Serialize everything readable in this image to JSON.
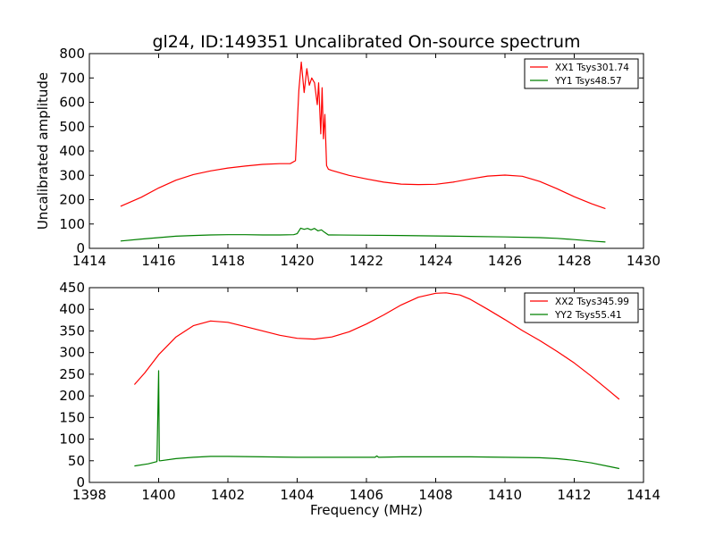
{
  "chart_data": [
    {
      "type": "line",
      "title": "gl24, ID:149351 Uncalibrated On-source spectrum",
      "xlabel": "",
      "ylabel": "Uncalibrated amplitude",
      "xlim": [
        1414,
        1430
      ],
      "ylim": [
        0,
        800
      ],
      "xticks": [
        1414,
        1416,
        1418,
        1420,
        1422,
        1424,
        1426,
        1428,
        1430
      ],
      "yticks": [
        0,
        100,
        200,
        300,
        400,
        500,
        600,
        700,
        800
      ],
      "legend_position": "top-right",
      "series": [
        {
          "name": "XX1 Tsys301.74",
          "color": "#ff0000",
          "x": [
            1414.9,
            1415.5,
            1416.0,
            1416.5,
            1417.0,
            1417.5,
            1418.0,
            1418.5,
            1419.0,
            1419.5,
            1419.8,
            1419.95,
            1420.05,
            1420.12,
            1420.2,
            1420.28,
            1420.35,
            1420.42,
            1420.5,
            1420.58,
            1420.62,
            1420.68,
            1420.72,
            1420.76,
            1420.8,
            1420.85,
            1420.9,
            1421.0,
            1421.5,
            1422.0,
            1422.5,
            1423.0,
            1423.5,
            1424.0,
            1424.5,
            1425.0,
            1425.5,
            1426.0,
            1426.5,
            1427.0,
            1427.5,
            1428.0,
            1428.5,
            1428.9
          ],
          "values": [
            173,
            210,
            248,
            280,
            303,
            318,
            330,
            338,
            345,
            348,
            348,
            360,
            650,
            765,
            640,
            738,
            670,
            700,
            680,
            590,
            680,
            470,
            660,
            450,
            550,
            340,
            325,
            320,
            300,
            285,
            272,
            264,
            262,
            263,
            272,
            285,
            297,
            301,
            296,
            275,
            245,
            212,
            183,
            163
          ]
        },
        {
          "name": "YY1 Tsys48.57",
          "color": "#008000",
          "x": [
            1414.9,
            1415.5,
            1416.0,
            1416.5,
            1417.0,
            1417.5,
            1418.0,
            1418.5,
            1419.0,
            1419.5,
            1419.9,
            1420.0,
            1420.1,
            1420.2,
            1420.3,
            1420.4,
            1420.5,
            1420.6,
            1420.7,
            1420.8,
            1420.9,
            1421.0,
            1422.0,
            1423.0,
            1424.0,
            1425.0,
            1426.0,
            1427.0,
            1427.5,
            1428.0,
            1428.5,
            1428.9
          ],
          "values": [
            30,
            38,
            44,
            50,
            53,
            55,
            56,
            56,
            55,
            55,
            56,
            60,
            83,
            78,
            82,
            76,
            82,
            72,
            76,
            65,
            55,
            55,
            54,
            53,
            51,
            49,
            47,
            44,
            41,
            36,
            30,
            26
          ]
        }
      ]
    },
    {
      "type": "line",
      "title": "",
      "xlabel": "Frequency (MHz)",
      "ylabel": "",
      "xlim": [
        1398,
        1414
      ],
      "ylim": [
        0,
        450
      ],
      "xticks": [
        1398,
        1400,
        1402,
        1404,
        1406,
        1408,
        1410,
        1412,
        1414
      ],
      "yticks": [
        0,
        50,
        100,
        150,
        200,
        250,
        300,
        350,
        400,
        450
      ],
      "legend_position": "top-right",
      "series": [
        {
          "name": "XX2 Tsys345.99",
          "color": "#ff0000",
          "x": [
            1399.3,
            1399.6,
            1400.0,
            1400.5,
            1401.0,
            1401.5,
            1402.0,
            1402.5,
            1403.0,
            1403.5,
            1404.0,
            1404.5,
            1405.0,
            1405.5,
            1406.0,
            1406.5,
            1407.0,
            1407.5,
            1408.0,
            1408.3,
            1408.7,
            1409.0,
            1409.5,
            1410.0,
            1410.5,
            1411.0,
            1411.5,
            1412.0,
            1412.5,
            1413.0,
            1413.3
          ],
          "values": [
            226,
            253,
            295,
            336,
            362,
            373,
            370,
            360,
            350,
            340,
            333,
            331,
            336,
            348,
            366,
            387,
            410,
            428,
            437,
            438,
            433,
            423,
            400,
            376,
            351,
            328,
            303,
            276,
            245,
            212,
            192
          ]
        },
        {
          "name": "YY2 Tsys55.41",
          "color": "#008000",
          "x": [
            1399.3,
            1399.7,
            1399.95,
            1400.0,
            1400.02,
            1400.05,
            1400.5,
            1401.0,
            1401.5,
            1402.0,
            1403.0,
            1404.0,
            1405.0,
            1406.0,
            1406.25,
            1406.3,
            1406.35,
            1407.0,
            1408.0,
            1409.0,
            1410.0,
            1411.0,
            1411.5,
            1412.0,
            1412.5,
            1413.0,
            1413.3
          ],
          "values": [
            38,
            43,
            48,
            258,
            50,
            50,
            55,
            58,
            60,
            60,
            59,
            58,
            58,
            58,
            58,
            61,
            58,
            59,
            59,
            59,
            58,
            57,
            55,
            51,
            45,
            37,
            32
          ]
        }
      ]
    }
  ]
}
